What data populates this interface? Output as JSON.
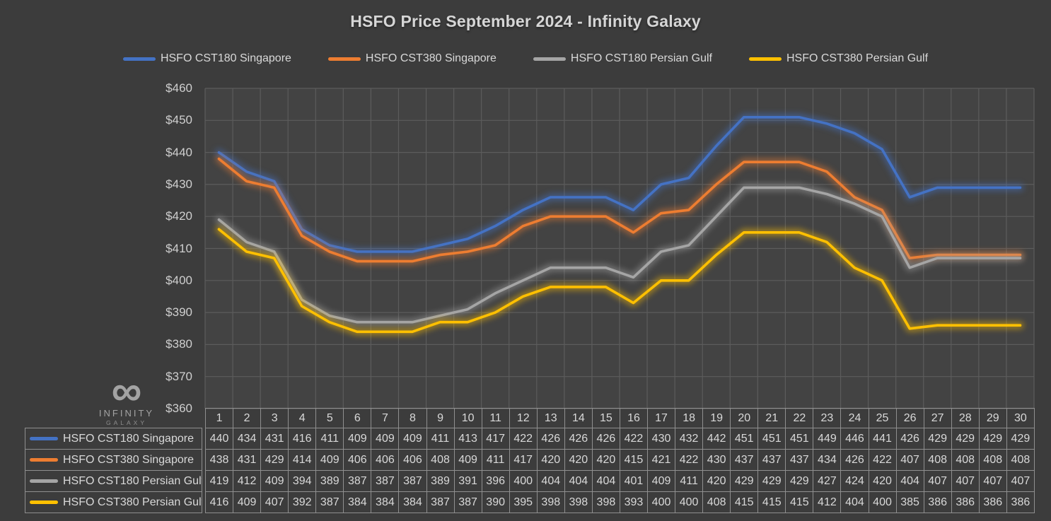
{
  "title": "HSFO Price September 2024 - Infinity Galaxy",
  "logo": {
    "name": "INFINITY",
    "subname": "GALAXY",
    "symbol": "∞"
  },
  "colors": {
    "page_background": "#3c3c3c",
    "plot_background": "#434343",
    "gridline": "#5c5c5c",
    "table_border": "#8f8f8f",
    "text": "#d9d9d9",
    "title_text": "#d6d6d6",
    "logo_text": "#a3a3a3"
  },
  "chart_data": {
    "type": "line",
    "title": "HSFO Price September 2024 - Infinity Galaxy",
    "xlabel": "",
    "ylabel": "",
    "ylim": [
      360,
      460
    ],
    "y_tick_labels": [
      "$460",
      "$450",
      "$440",
      "$430",
      "$420",
      "$410",
      "$400",
      "$390",
      "$380",
      "$370",
      "$360"
    ],
    "grid": true,
    "legend_position": "top",
    "categories": [
      1,
      2,
      3,
      4,
      5,
      6,
      7,
      8,
      9,
      10,
      11,
      12,
      13,
      14,
      15,
      16,
      17,
      18,
      19,
      20,
      21,
      22,
      23,
      24,
      25,
      26,
      27,
      28,
      29,
      30
    ],
    "series": [
      {
        "name": "HSFO CST180 Singapore",
        "color": "#4472C4",
        "values": [
          440,
          434,
          431,
          416,
          411,
          409,
          409,
          409,
          411,
          413,
          417,
          422,
          426,
          426,
          426,
          422,
          430,
          432,
          442,
          451,
          451,
          451,
          449,
          446,
          441,
          426,
          429,
          429,
          429,
          429
        ]
      },
      {
        "name": "HSFO CST380 Singapore",
        "color": "#ED7D31",
        "values": [
          438,
          431,
          429,
          414,
          409,
          406,
          406,
          406,
          408,
          409,
          411,
          417,
          420,
          420,
          420,
          415,
          421,
          422,
          430,
          437,
          437,
          437,
          434,
          426,
          422,
          407,
          408,
          408,
          408,
          408
        ]
      },
      {
        "name": "HSFO CST180 Persian Gulf",
        "color": "#A5A5A5",
        "values": [
          419,
          412,
          409,
          394,
          389,
          387,
          387,
          387,
          389,
          391,
          396,
          400,
          404,
          404,
          404,
          401,
          409,
          411,
          420,
          429,
          429,
          429,
          427,
          424,
          420,
          404,
          407,
          407,
          407,
          407
        ]
      },
      {
        "name": "HSFO CST380 Persian Gulf",
        "color": "#FFC000",
        "values": [
          416,
          409,
          407,
          392,
          387,
          384,
          384,
          384,
          387,
          387,
          390,
          395,
          398,
          398,
          398,
          393,
          400,
          400,
          408,
          415,
          415,
          415,
          412,
          404,
          400,
          385,
          386,
          386,
          386,
          386
        ]
      }
    ]
  }
}
